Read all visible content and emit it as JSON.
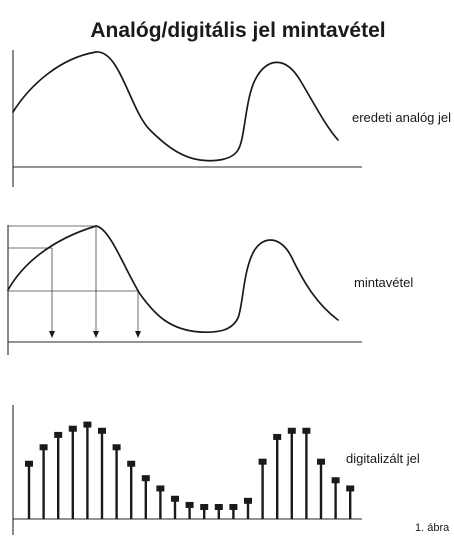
{
  "title": "Analóg/digitális jel mintavétel",
  "panels": {
    "analog": {
      "label": "eredeti analóg jel"
    },
    "sampling": {
      "label": "mintavétel"
    },
    "digital": {
      "label": "digitalizált jel"
    }
  },
  "caption": "1. ábra",
  "colors": {
    "ink": "#1a1a1a",
    "background": "#ffffff"
  },
  "signal": {
    "samples": [
      0.42,
      0.58,
      0.7,
      0.76,
      0.8,
      0.74,
      0.58,
      0.42,
      0.28,
      0.18,
      0.08,
      0.02,
      0.0,
      0.0,
      0.0,
      0.06,
      0.44,
      0.68,
      0.74,
      0.74,
      0.44,
      0.26,
      0.18
    ]
  }
}
